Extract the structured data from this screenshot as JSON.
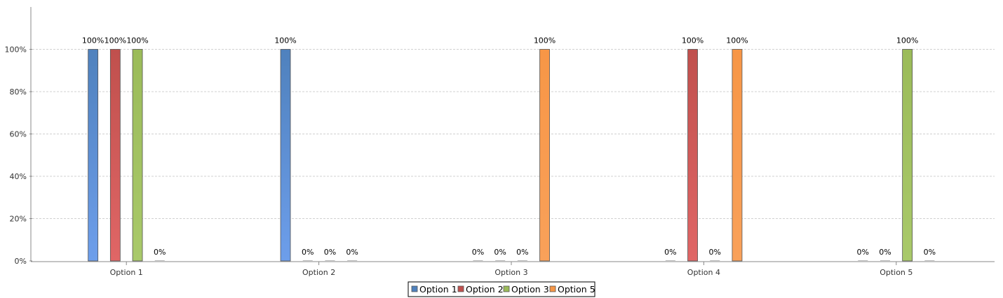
{
  "chart_data": {
    "type": "bar",
    "categories": [
      "Option 1",
      "Option 2",
      "Option 3",
      "Option 4",
      "Option 5"
    ],
    "series": [
      {
        "name": "Option 1",
        "values": [
          100,
          100,
          0,
          0,
          0
        ],
        "labels": [
          "100%",
          "100%",
          "0%",
          "0%",
          "0%"
        ],
        "color": "#4f81bd",
        "light": "#6d9eeb"
      },
      {
        "name": "Option 2",
        "values": [
          100,
          0,
          0,
          100,
          0
        ],
        "labels": [
          "100%",
          "0%",
          "0%",
          "100%",
          "0%"
        ],
        "color": "#c0504d",
        "light": "#e06666"
      },
      {
        "name": "Option 3",
        "values": [
          100,
          0,
          0,
          0,
          100
        ],
        "labels": [
          "100%",
          "0%",
          "0%",
          "0%",
          "100%"
        ],
        "color": "#9bbb59",
        "light": "#a9c96a"
      },
      {
        "name": "Option 5",
        "values": [
          0,
          0,
          100,
          100,
          0
        ],
        "labels": [
          "0%",
          "0%",
          "100%",
          "100%",
          "0%"
        ],
        "color": "#f79646",
        "light": "#f9a15a"
      }
    ],
    "y_ticks": [
      {
        "value": 0,
        "label": "0%"
      },
      {
        "value": 20,
        "label": "20%"
      },
      {
        "value": 40,
        "label": "40%"
      },
      {
        "value": 60,
        "label": "60%"
      },
      {
        "value": 80,
        "label": "80%"
      },
      {
        "value": 100,
        "label": "100%"
      }
    ],
    "ylim": [
      0,
      120
    ],
    "grid": true,
    "legend_position": "bottom-center",
    "title": "",
    "xlabel": "",
    "ylabel": ""
  }
}
